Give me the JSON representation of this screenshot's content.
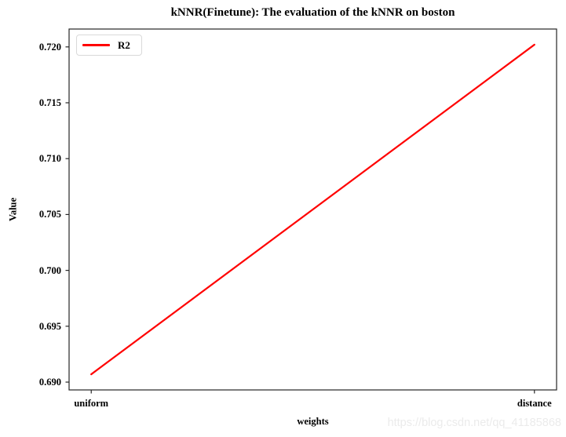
{
  "figure": {
    "watermark": "https://blog.csdn.net/qq_41185868"
  },
  "legend": {
    "label": "R2"
  },
  "chart_data": {
    "type": "line",
    "title": "kNNR(Finetune): The evaluation of the kNNR on boston",
    "categories": [
      "uniform",
      "distance"
    ],
    "series": [
      {
        "name": "R2",
        "values": [
          0.6907,
          0.7202
        ],
        "color": "#ff0000",
        "linewidth": 2.2
      }
    ],
    "xlabel": "weights",
    "ylabel": "Value",
    "yticks": [
      0.69,
      0.695,
      0.7,
      0.705,
      0.71,
      0.715,
      0.72
    ],
    "ytick_labels": [
      "0.690",
      "0.695",
      "0.700",
      "0.705",
      "0.710",
      "0.715",
      "0.720"
    ],
    "ylim": [
      0.6893,
      0.7216
    ],
    "xlim": [
      -0.05,
      1.05
    ],
    "grid": false,
    "legend_position": "upper left",
    "axis_color": "#262626",
    "background": "#ffffff"
  }
}
